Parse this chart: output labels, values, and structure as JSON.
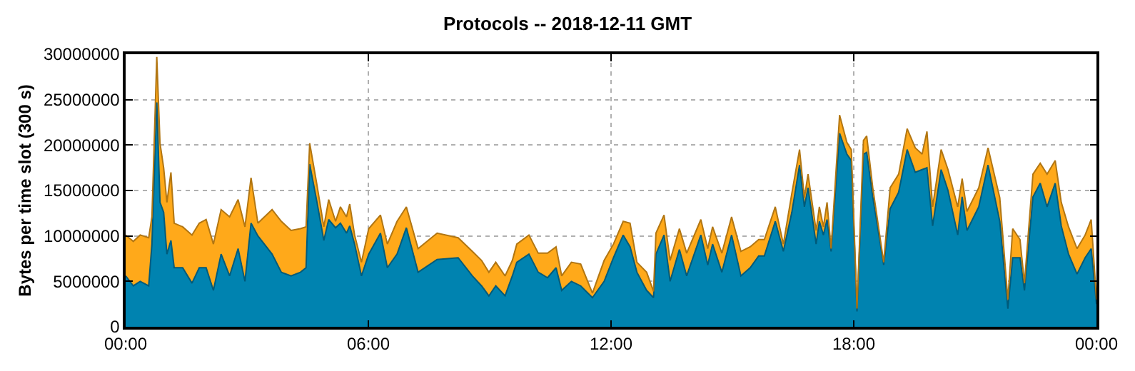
{
  "chart_data": {
    "type": "area",
    "stacked": true,
    "title": "Protocols -- 2018-12-11 GMT",
    "ylabel": "Bytes per time slot (300 s)",
    "x": [
      0.0,
      0.19,
      0.36,
      0.57,
      0.65,
      0.77,
      0.85,
      0.94,
      1.02,
      1.12,
      1.2,
      1.41,
      1.64,
      1.82,
      1.99,
      2.17,
      2.36,
      2.57,
      2.78,
      2.95,
      3.1,
      3.27,
      3.62,
      3.85,
      4.09,
      4.32,
      4.46,
      4.55,
      4.73,
      4.9,
      5.02,
      5.19,
      5.31,
      5.46,
      5.54,
      5.66,
      5.83,
      6.01,
      6.3,
      6.47,
      6.71,
      6.94,
      7.23,
      7.7,
      8.22,
      8.57,
      8.8,
      8.98,
      9.15,
      9.38,
      9.56,
      9.67,
      9.97,
      10.2,
      10.43,
      10.64,
      10.78,
      11.02,
      11.25,
      11.54,
      11.83,
      12.06,
      12.3,
      12.47,
      12.64,
      12.88,
      13.05,
      13.11,
      13.31,
      13.46,
      13.69,
      13.87,
      14.22,
      14.39,
      14.51,
      14.74,
      14.98,
      15.21,
      15.44,
      15.65,
      15.79,
      16.06,
      16.26,
      16.47,
      16.66,
      16.78,
      16.87,
      17.07,
      17.15,
      17.25,
      17.34,
      17.44,
      17.65,
      17.83,
      17.94,
      18.08,
      18.24,
      18.32,
      18.47,
      18.74,
      18.9,
      19.11,
      19.32,
      19.52,
      19.69,
      19.81,
      19.95,
      20.16,
      20.33,
      20.57,
      20.68,
      20.8,
      21.09,
      21.32,
      21.61,
      21.81,
      21.93,
      22.11,
      22.22,
      22.43,
      22.61,
      22.78,
      22.98,
      23.13,
      23.31,
      23.52,
      23.72,
      23.87,
      24.0
    ],
    "series": [
      {
        "color": "#0083b0",
        "values": [
          5600000,
          4500000,
          5000000,
          4500000,
          9100000,
          24700000,
          13700000,
          12600000,
          8000000,
          9500000,
          6500000,
          6500000,
          4800000,
          6500000,
          6500000,
          4000000,
          8000000,
          5600000,
          8600000,
          5000000,
          11400000,
          10000000,
          8000000,
          6000000,
          5600000,
          6000000,
          6500000,
          17900000,
          13700000,
          9500000,
          11800000,
          10900000,
          11400000,
          10300000,
          11100000,
          9100000,
          5600000,
          8000000,
          10300000,
          6500000,
          8000000,
          10900000,
          6000000,
          7400000,
          7600000,
          5600000,
          4500000,
          3400000,
          4500000,
          3400000,
          5600000,
          7100000,
          8000000,
          6000000,
          5400000,
          6500000,
          4000000,
          5000000,
          4500000,
          3200000,
          5000000,
          7600000,
          10100000,
          8800000,
          6000000,
          4000000,
          3200000,
          8000000,
          10100000,
          5000000,
          8500000,
          5600000,
          10100000,
          6800000,
          9100000,
          6000000,
          10100000,
          5600000,
          6500000,
          7800000,
          7800000,
          11600000,
          8300000,
          12600000,
          17800000,
          13200000,
          15300000,
          9100000,
          11600000,
          10100000,
          11800000,
          8300000,
          21300000,
          19000000,
          18300000,
          1700000,
          19000000,
          19200000,
          14300000,
          6800000,
          13000000,
          14800000,
          19500000,
          17000000,
          17300000,
          17500000,
          11100000,
          17300000,
          15000000,
          10100000,
          14300000,
          10600000,
          13200000,
          17800000,
          11600000,
          2000000,
          7600000,
          7600000,
          4000000,
          14300000,
          15800000,
          13200000,
          15800000,
          11100000,
          8000000,
          5800000,
          7600000,
          8600000,
          2500000
        ]
      },
      {
        "color": "#ffa91a",
        "values": [
          4500000,
          4900000,
          5100000,
          5300000,
          3000000,
          5000000,
          6500000,
          4900000,
          5700000,
          7500000,
          4900000,
          4500000,
          5300000,
          4900000,
          5300000,
          5100000,
          4900000,
          6500000,
          5400000,
          6000000,
          5000000,
          1400000,
          4900000,
          5600000,
          5000000,
          4800000,
          4500000,
          2300000,
          1900000,
          1500000,
          2200000,
          700000,
          1800000,
          1800000,
          2400000,
          1000000,
          1500000,
          2800000,
          2000000,
          2600000,
          3600000,
          2300000,
          2600000,
          2900000,
          2200000,
          2700000,
          2800000,
          2600000,
          2600000,
          2200000,
          1700000,
          2000000,
          2100000,
          2100000,
          2700000,
          2300000,
          1600000,
          2100000,
          2400000,
          500000,
          2300000,
          1500000,
          1500000,
          2600000,
          1100000,
          2000000,
          700000,
          2300000,
          2200000,
          2300000,
          2300000,
          2500000,
          1700000,
          1800000,
          1900000,
          2100000,
          2000000,
          2700000,
          2300000,
          1800000,
          1800000,
          1600000,
          800000,
          2100000,
          1700000,
          1000000,
          1500000,
          1500000,
          1600000,
          900000,
          1900000,
          300000,
          2000000,
          1300000,
          1200000,
          300000,
          1500000,
          1800000,
          1000000,
          300000,
          2300000,
          2000000,
          2300000,
          2700000,
          1700000,
          4000000,
          2100000,
          2200000,
          2300000,
          3100000,
          2000000,
          2100000,
          2100000,
          1900000,
          2600000,
          1000000,
          3200000,
          2000000,
          800000,
          2500000,
          2200000,
          3600000,
          2500000,
          2600000,
          3000000,
          2800000,
          2500000,
          3200000,
          500000
        ]
      }
    ],
    "xlim": [
      0,
      24
    ],
    "xticks": [
      {
        "value": 0,
        "label": "00:00"
      },
      {
        "value": 6,
        "label": "06:00"
      },
      {
        "value": 12,
        "label": "12:00"
      },
      {
        "value": 18,
        "label": "18:00"
      },
      {
        "value": 24,
        "label": "00:00"
      }
    ],
    "ylim": [
      0,
      30000000
    ],
    "yticks": [
      0,
      5000000,
      10000000,
      15000000,
      20000000,
      25000000,
      30000000
    ],
    "grid": true
  }
}
